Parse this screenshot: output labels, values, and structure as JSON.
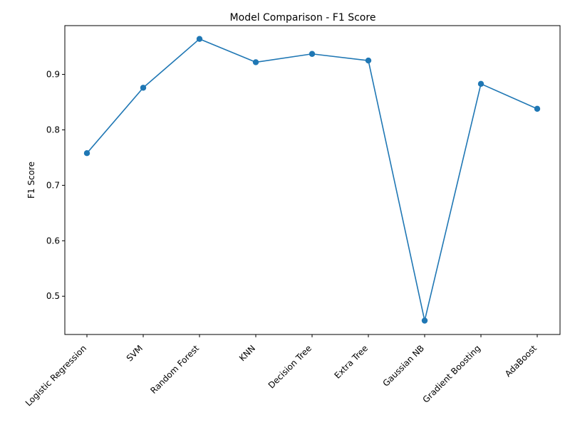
{
  "chart_data": {
    "type": "line",
    "title": "Model Comparison - F1 Score",
    "xlabel": "",
    "ylabel": "F1 Score",
    "categories": [
      "Logistic Regression",
      "SVM",
      "Random Forest",
      "KNN",
      "Decision Tree",
      "Extra Tree",
      "Gaussian NB",
      "Gradient Boosting",
      "AdaBoost"
    ],
    "series": [
      {
        "values": [
          0.758,
          0.876,
          0.964,
          0.922,
          0.937,
          0.925,
          0.456,
          0.883,
          0.838
        ],
        "color": "#1f77b4",
        "marker": "circle"
      }
    ],
    "ylim": [
      0.431,
      0.988
    ],
    "yticks": [
      0.5,
      0.6,
      0.7,
      0.8,
      0.9
    ],
    "ytick_labels": [
      "0.5",
      "0.6",
      "0.7",
      "0.8",
      "0.9"
    ],
    "grid": false,
    "legend": false
  }
}
